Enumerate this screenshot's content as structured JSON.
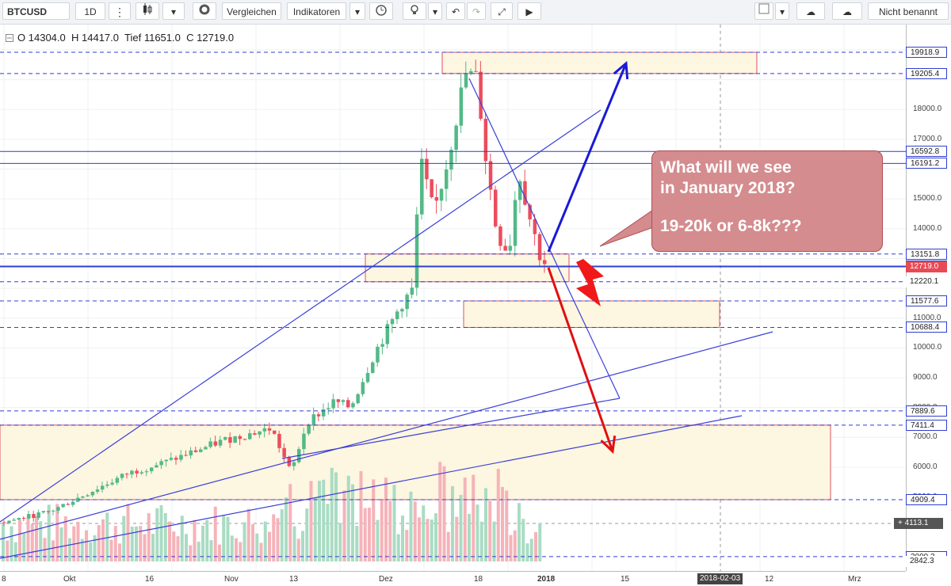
{
  "toolbar": {
    "symbol": "BTCUSD",
    "interval": "1D",
    "compare": "Vergleichen",
    "indicators": "Indikatoren",
    "layout_name": "Nicht benannt"
  },
  "ohlc": {
    "o_label": "O",
    "o": "14304.0",
    "h_label": "H",
    "h": "14417.0",
    "l_label": "Tief",
    "l": "11651.0",
    "c_label": "C",
    "c": "12719.0"
  },
  "annotation": {
    "line1": "What will we see",
    "line2": "in January 2018?",
    "line3": "19-20k or 6-8k???"
  },
  "price_axis": {
    "ticks": [
      "18000.0",
      "17000.0",
      "15000.0",
      "14000.0",
      "11000.0",
      "10000.0",
      "9000.0",
      "8000.0",
      "7000.0",
      "6000.0",
      "5000.0"
    ],
    "levels": [
      {
        "value": "19918.9",
        "style": "blue"
      },
      {
        "value": "19205.4",
        "style": "blue"
      },
      {
        "value": "16592.8",
        "style": "blue"
      },
      {
        "value": "16191.2",
        "style": "blue"
      },
      {
        "value": "13151.8",
        "style": "blue"
      },
      {
        "value": "12747.8",
        "style": "blue"
      },
      {
        "value": "12719.0",
        "style": "cur"
      },
      {
        "value": "12220.1",
        "style": "plain"
      },
      {
        "value": "11577.6",
        "style": "blue"
      },
      {
        "value": "10688.4",
        "style": "blue"
      },
      {
        "value": "7889.6",
        "style": "blue"
      },
      {
        "value": "7411.4",
        "style": "blue"
      },
      {
        "value": "4909.4",
        "style": "blue"
      },
      {
        "value": "4113.1",
        "style": "dark"
      },
      {
        "value": "3000.3",
        "style": "blue"
      },
      {
        "value": "2842.3",
        "style": "plain"
      }
    ]
  },
  "date_axis": {
    "labels": [
      "8",
      "Okt",
      "16",
      "Nov",
      "13",
      "Dez",
      "18",
      "2018",
      "15",
      "2018-02-03",
      "12",
      "Mrz"
    ],
    "highlight": "2018-02-03"
  },
  "chart_data": {
    "type": "candlestick",
    "symbol": "BTCUSD",
    "interval": "1D",
    "ohlc_last": {
      "open": 14304.0,
      "high": 14417.0,
      "low": 11651.0,
      "close": 12719.0
    },
    "price_range": [
      2842.3,
      20600
    ],
    "horizontal_levels": [
      19918.9,
      19205.4,
      16592.8,
      16191.2,
      13151.8,
      12747.8,
      12719.0,
      12220.1,
      11577.6,
      10688.4,
      7889.6,
      7411.4,
      4909.4,
      3000.3
    ],
    "zones": [
      {
        "from": 19205.4,
        "to": 19918.9
      },
      {
        "from": 12220.1,
        "to": 13151.8
      },
      {
        "from": 10688.4,
        "to": 11577.6
      },
      {
        "from": 4909.4,
        "to": 7411.4
      }
    ],
    "scenarios": [
      {
        "direction": "up",
        "target": "19-20k"
      },
      {
        "direction": "down",
        "target": "6-8k"
      }
    ],
    "x_labels": [
      "8",
      "Okt",
      "16",
      "Nov",
      "13",
      "Dez",
      "18",
      "2018",
      "15",
      "2018-02-03",
      "12",
      "Mrz"
    ],
    "colors": {
      "up": "#53b987",
      "down": "#eb4d5c",
      "level": "#2f3fd0",
      "up_arrow": "#1a1ad6",
      "down_arrow": "#e01010"
    }
  }
}
